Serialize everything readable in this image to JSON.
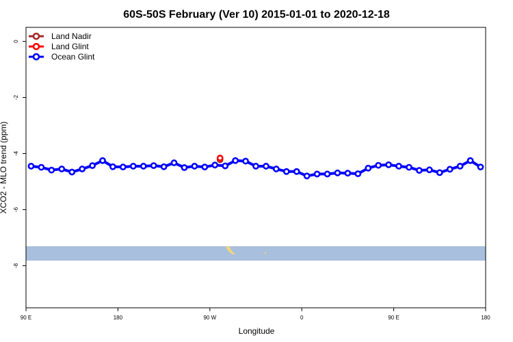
{
  "chart_data": {
    "type": "line",
    "title": "60S-50S February (Ver 10)   2015-01-01 to 2020-12-18",
    "xlabel": "Longitude",
    "ylabel": "XCO2 - MLO trend (ppm)",
    "xlim": [
      -180,
      180
    ],
    "ylim": [
      -9.5,
      0.5
    ],
    "x_ticks": [
      {
        "value": -180,
        "label": "90 E"
      },
      {
        "value": -108,
        "label": "180"
      },
      {
        "value": -36,
        "label": "90 W"
      },
      {
        "value": 36,
        "label": "0"
      },
      {
        "value": 108,
        "label": "90 E"
      },
      {
        "value": 180,
        "label": "180"
      }
    ],
    "y_ticks": [
      {
        "value": 0,
        "label": "0"
      },
      {
        "value": -2,
        "label": "-2"
      },
      {
        "value": -4,
        "label": "-4"
      },
      {
        "value": -6,
        "label": "-6"
      },
      {
        "value": -8,
        "label": "-8"
      }
    ],
    "legend_position": "top-left",
    "series": [
      {
        "name": "Land Nadir",
        "color": "#a52a2a",
        "x": [
          -28
        ],
        "y": [
          -4.22
        ]
      },
      {
        "name": "Land Glint",
        "color": "#ff0000",
        "x": [
          -28
        ],
        "y": [
          -4.16
        ]
      },
      {
        "name": "Ocean Glint",
        "color": "#0000ff",
        "x": [
          -176,
          -168,
          -160,
          -152,
          -144,
          -136,
          -128,
          -120,
          -112,
          -104,
          -96,
          -88,
          -80,
          -72,
          -64,
          -56,
          -48,
          -40,
          -32,
          -24,
          -16,
          -8,
          0,
          8,
          16,
          24,
          32,
          40,
          48,
          56,
          64,
          72,
          80,
          88,
          96,
          104,
          112,
          120,
          128,
          136,
          144,
          152,
          160,
          168,
          176
        ],
        "y": [
          -4.45,
          -4.49,
          -4.59,
          -4.55,
          -4.66,
          -4.55,
          -4.43,
          -4.25,
          -4.47,
          -4.48,
          -4.45,
          -4.45,
          -4.43,
          -4.47,
          -4.33,
          -4.5,
          -4.45,
          -4.48,
          -4.41,
          -4.44,
          -4.25,
          -4.27,
          -4.45,
          -4.45,
          -4.55,
          -4.64,
          -4.64,
          -4.8,
          -4.73,
          -4.73,
          -4.69,
          -4.7,
          -4.72,
          -4.52,
          -4.42,
          -4.4,
          -4.45,
          -4.49,
          -4.6,
          -4.58,
          -4.68,
          -4.56,
          -4.45,
          -4.25,
          -4.48
        ]
      }
    ],
    "map_strip": {
      "ocean_color": "#a8bfdd",
      "land_color": "#f5d67a"
    }
  }
}
